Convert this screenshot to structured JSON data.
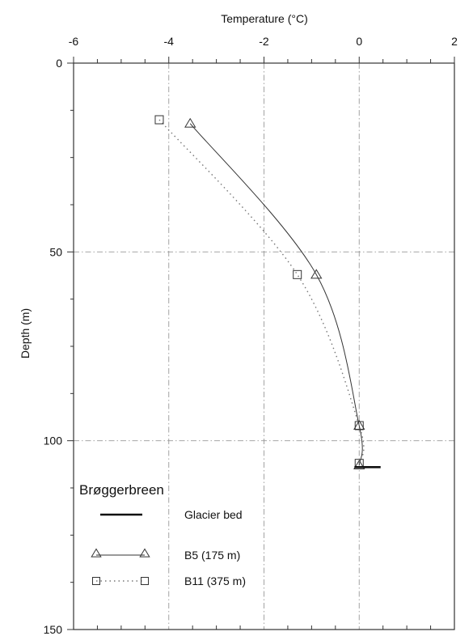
{
  "chart_data": {
    "type": "line",
    "xlabel": "Temperature (°C)",
    "ylabel": "Depth (m)",
    "x_axis_position": "top",
    "y_axis_inverted": true,
    "xlim": [
      -6,
      2
    ],
    "ylim": [
      0,
      150
    ],
    "x_ticks": [
      "-6",
      "-4",
      "-2",
      "0",
      "2"
    ],
    "y_ticks": [
      "0",
      "50",
      "100",
      "150"
    ],
    "grid": true,
    "legend": {
      "title": "Brøggerbreen",
      "placement": "bottom-left",
      "entries": [
        {
          "label": "Glacier bed",
          "key": "bed"
        },
        {
          "label": "B5   (175 m)",
          "key": "b5"
        },
        {
          "label": "B11 (375 m)",
          "key": "b11"
        }
      ]
    },
    "series": [
      {
        "key": "b5",
        "marker": "triangle",
        "line_style": "solid",
        "points": [
          {
            "x": -3.55,
            "y": 16
          },
          {
            "x": -0.9,
            "y": 56
          },
          {
            "x": 0.0,
            "y": 96
          },
          {
            "x": 0.0,
            "y": 106.5
          }
        ]
      },
      {
        "key": "b11",
        "marker": "square",
        "line_style": "dotted",
        "points": [
          {
            "x": -4.2,
            "y": 15
          },
          {
            "x": -1.3,
            "y": 56
          },
          {
            "x": 0.0,
            "y": 96
          },
          {
            "x": 0.0,
            "y": 106
          }
        ]
      }
    ],
    "glacier_bed": {
      "depth": 107,
      "x_range": [
        -0.1,
        0.45
      ]
    }
  }
}
